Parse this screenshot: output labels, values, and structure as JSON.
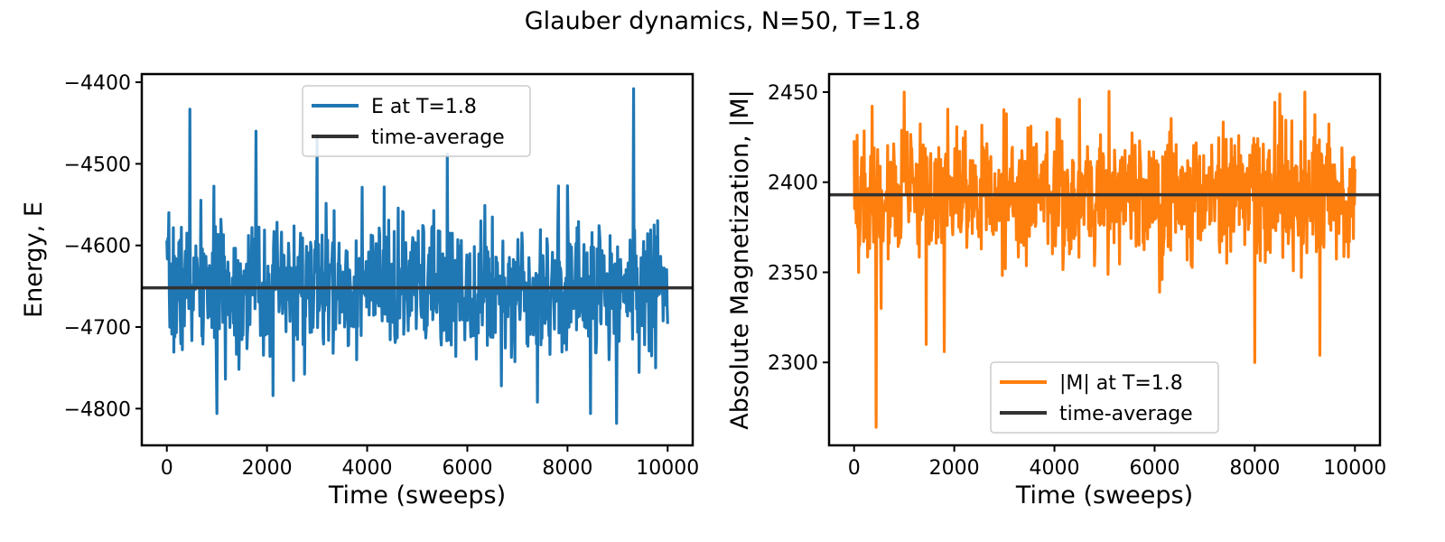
{
  "figure": {
    "title": "Glauber dynamics, N=50, T=1.8"
  },
  "chart_data": [
    {
      "type": "line",
      "xlabel": "Time (sweeps)",
      "ylabel": "Energy, E",
      "xlim": [
        -500,
        10500
      ],
      "ylim": [
        -4845,
        -4390
      ],
      "xticks": [
        0,
        2000,
        4000,
        6000,
        8000,
        10000
      ],
      "yticks": [
        -4800,
        -4700,
        -4600,
        -4500,
        -4400
      ],
      "legend_position": "upper center",
      "series": [
        {
          "name": "E at T=1.8",
          "color": "#1f77b4",
          "mean": -4652,
          "spread": 40,
          "seed": 7,
          "n_points": 1001,
          "x_range": [
            0,
            10000
          ],
          "extremes": [
            [
              460,
              -4433
            ],
            [
              1000,
              -4806
            ],
            [
              1780,
              -4460
            ],
            [
              2120,
              -4784
            ],
            [
              3000,
              -4465
            ],
            [
              5600,
              -4488
            ],
            [
              7400,
              -4792
            ],
            [
              8000,
              -4527
            ],
            [
              8460,
              -4806
            ],
            [
              8980,
              -4818
            ],
            [
              9320,
              -4408
            ]
          ]
        },
        {
          "name": "time-average",
          "color": "#333333",
          "value": -4652
        }
      ]
    },
    {
      "type": "line",
      "xlabel": "Time (sweeps)",
      "ylabel": "Absolute Magnetization, |M|",
      "xlim": [
        -500,
        10500
      ],
      "ylim": [
        2254,
        2460
      ],
      "xticks": [
        0,
        2000,
        4000,
        6000,
        8000,
        10000
      ],
      "yticks": [
        2300,
        2350,
        2400,
        2450
      ],
      "legend_position": "lower center",
      "series": [
        {
          "name": "|M| at T=1.8",
          "color": "#ff7f0e",
          "mean": 2393,
          "spread": 18,
          "seed": 19,
          "n_points": 1001,
          "x_range": [
            0,
            10000
          ],
          "extremes": [
            [
              440,
              2264
            ],
            [
              540,
              2330
            ],
            [
              1000,
              2450
            ],
            [
              1440,
              2310
            ],
            [
              1800,
              2306
            ],
            [
              4500,
              2446
            ],
            [
              6100,
              2339
            ],
            [
              8000,
              2300
            ],
            [
              8500,
              2449
            ],
            [
              9000,
              2450
            ],
            [
              9300,
              2304
            ]
          ]
        },
        {
          "name": "time-average",
          "color": "#333333",
          "value": 2393
        }
      ]
    }
  ]
}
